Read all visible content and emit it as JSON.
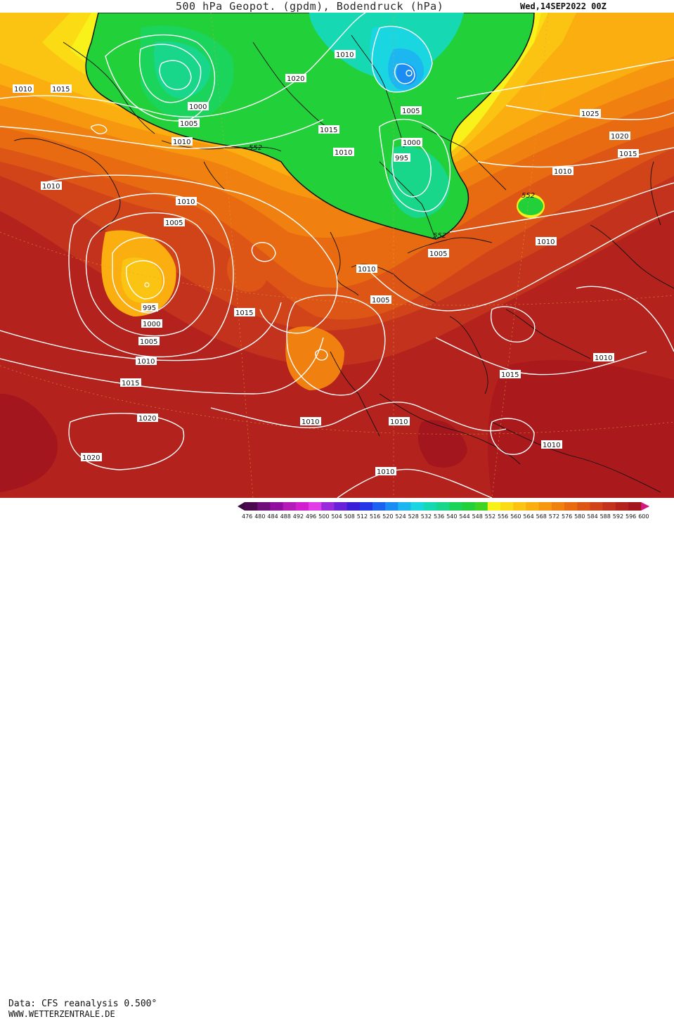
{
  "header": {
    "title": "500 hPa Geopot. (gpdm), Bodendruck (hPa)",
    "datestamp": "Wed,14SEP2022 00Z"
  },
  "footer": {
    "source": "Data: CFS reanalysis 0.500°",
    "site": "WWW.WETTERZENTRALE.DE"
  },
  "legend": {
    "values": [
      "476",
      "480",
      "484",
      "488",
      "492",
      "496",
      "500",
      "504",
      "508",
      "512",
      "516",
      "520",
      "524",
      "528",
      "532",
      "536",
      "540",
      "544",
      "548",
      "552",
      "556",
      "560",
      "564",
      "568",
      "572",
      "576",
      "580",
      "584",
      "588",
      "592",
      "596",
      "600"
    ],
    "colors": [
      "#4b0a4e",
      "#6e0f7a",
      "#900f9e",
      "#b41bb8",
      "#d21fd0",
      "#e23ee8",
      "#9a2bdc",
      "#6a22d8",
      "#3a1fd8",
      "#2436e6",
      "#1c62f0",
      "#1b8df2",
      "#1cb7f0",
      "#19d6e0",
      "#16d9b4",
      "#18d68a",
      "#1bd45c",
      "#22d03a",
      "#3fd424",
      "#f8f21a",
      "#fbdc14",
      "#fcc412",
      "#fbae10",
      "#f7970f",
      "#f0800f",
      "#e86b12",
      "#dd5616",
      "#d1441a",
      "#c2321c",
      "#b3221c",
      "#a3161e",
      "#d51680"
    ]
  },
  "map_labels": {
    "isobars": [
      {
        "text": "1010",
        "key": "a"
      },
      {
        "text": "1015",
        "key": "b"
      },
      {
        "text": "1000",
        "key": "c"
      },
      {
        "text": "1005",
        "key": "d"
      },
      {
        "text": "1010",
        "key": "e"
      },
      {
        "text": "1020",
        "key": "f"
      },
      {
        "text": "1010",
        "key": "g"
      },
      {
        "text": "1015",
        "key": "h"
      },
      {
        "text": "1010",
        "key": "i"
      },
      {
        "text": "1005",
        "key": "j"
      },
      {
        "text": "1000",
        "key": "k"
      },
      {
        "text": "995",
        "key": "l"
      },
      {
        "text": "1025",
        "key": "m"
      },
      {
        "text": "1020",
        "key": "n"
      },
      {
        "text": "1015",
        "key": "o"
      },
      {
        "text": "1010",
        "key": "p"
      },
      {
        "text": "1010",
        "key": "q"
      },
      {
        "text": "1010",
        "key": "r"
      },
      {
        "text": "1005",
        "key": "s"
      },
      {
        "text": "995",
        "key": "t"
      },
      {
        "text": "1000",
        "key": "u"
      },
      {
        "text": "1005",
        "key": "v"
      },
      {
        "text": "1010",
        "key": "w"
      },
      {
        "text": "1015",
        "key": "x"
      },
      {
        "text": "1020",
        "key": "y"
      },
      {
        "text": "1020",
        "key": "z"
      },
      {
        "text": "1015",
        "key": "aa"
      },
      {
        "text": "1010",
        "key": "ab"
      },
      {
        "text": "1005",
        "key": "ac"
      },
      {
        "text": "1010",
        "key": "ad"
      },
      {
        "text": "1010",
        "key": "ae"
      },
      {
        "text": "1010",
        "key": "af"
      },
      {
        "text": "1005",
        "key": "ag"
      },
      {
        "text": "1010",
        "key": "ah"
      },
      {
        "text": "1015",
        "key": "ai"
      },
      {
        "text": "1010",
        "key": "aj"
      },
      {
        "text": "1010",
        "key": "ak"
      }
    ],
    "heights": [
      {
        "text": "552",
        "key": "h1"
      },
      {
        "text": "552",
        "key": "h2"
      },
      {
        "text": "552",
        "key": "h3"
      }
    ]
  }
}
